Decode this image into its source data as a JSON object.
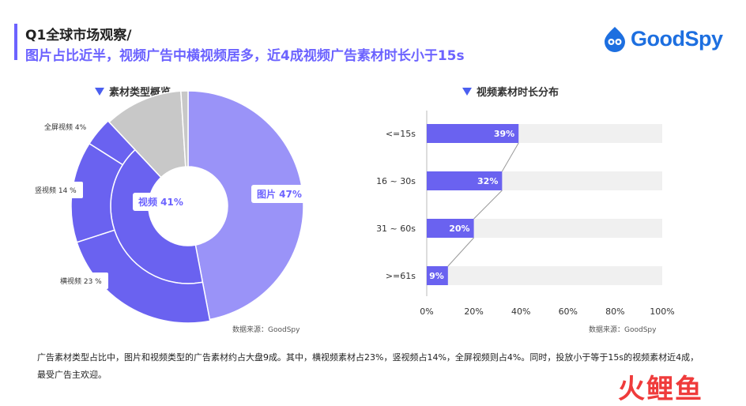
{
  "header": {
    "title_line1": "Q1全球市场观察/",
    "title_line2": "图片占比近半，视频广告中横视频居多，近4成视频广告素材时长小于15s",
    "logo_text": "GoodSpy"
  },
  "left_section": {
    "title": "素材类型概览",
    "source": "数据来源：GoodSpy",
    "callouts": {
      "fullscreen": "全屏视频  4%",
      "vertical": "竖视频  14 %",
      "horizontal": "横视频  23 %",
      "video": "视频 41%",
      "image": "图片 47%"
    }
  },
  "right_section": {
    "title": "视频素材时长分布",
    "source": "数据来源：GoodSpy"
  },
  "footnote": "广告素材类型占比中，图片和视频类型的广告素材约占大盘9成。其中，横视频素材占23%，竖视频占14%，全屏视频则占4%。同时，投放小于等于15s的视频素材近4成，最受广告主欢迎。",
  "watermark": "火鲤鱼",
  "colors": {
    "accent": "#6c63ff",
    "image": "#9a93f8",
    "video": "#6a62f0",
    "other": "#c8c8c8",
    "bar": "#6a62f0",
    "track": "#f0f0f0"
  },
  "chart_data": [
    {
      "type": "pie",
      "title": "素材类型概览",
      "inner_ring": [
        {
          "label": "图片",
          "value": 47
        },
        {
          "label": "视频",
          "value": 41
        },
        {
          "label": "",
          "value": 11
        },
        {
          "label": "",
          "value": 1
        }
      ],
      "outer_ring_video_breakdown": [
        {
          "label": "横视频",
          "value": 23
        },
        {
          "label": "竖视频",
          "value": 14
        },
        {
          "label": "全屏视频",
          "value": 4
        }
      ]
    },
    {
      "type": "bar",
      "orientation": "horizontal",
      "title": "视频素材时长分布",
      "categories": [
        "<=15s",
        "16 ~ 30s",
        "31 ~ 60s",
        ">=61s"
      ],
      "values": [
        39,
        32,
        20,
        9
      ],
      "value_labels": [
        "39%",
        "32%",
        "20%",
        "9%"
      ],
      "xlim": [
        0,
        100
      ],
      "xticks": [
        "0%",
        "20%",
        "40%",
        "60%",
        "80%",
        "100%"
      ]
    }
  ]
}
